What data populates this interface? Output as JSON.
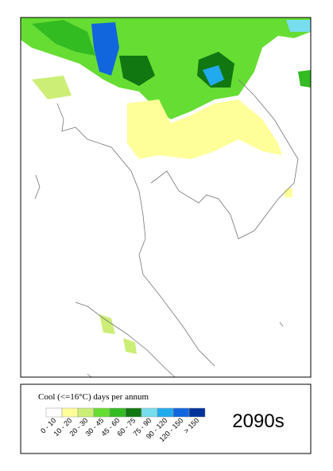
{
  "legend": {
    "title": "Cool (<=16°C) days per annum",
    "classes": [
      {
        "label": "0 - 10",
        "color": "#ffffff"
      },
      {
        "label": "10 - 20",
        "color": "#ffff99"
      },
      {
        "label": "20 - 30",
        "color": "#ccee77"
      },
      {
        "label": "30 - 45",
        "color": "#66dd33"
      },
      {
        "label": "45 - 60",
        "color": "#33bb22"
      },
      {
        "label": "60 - 75",
        "color": "#117711"
      },
      {
        "label": "75 - 90",
        "color": "#77ddee"
      },
      {
        "label": "90 - 120",
        "color": "#22aaee"
      },
      {
        "label": "120 - 150",
        "color": "#1166dd"
      },
      {
        "label": "> 150",
        "color": "#003399"
      }
    ]
  },
  "period": "2090s"
}
